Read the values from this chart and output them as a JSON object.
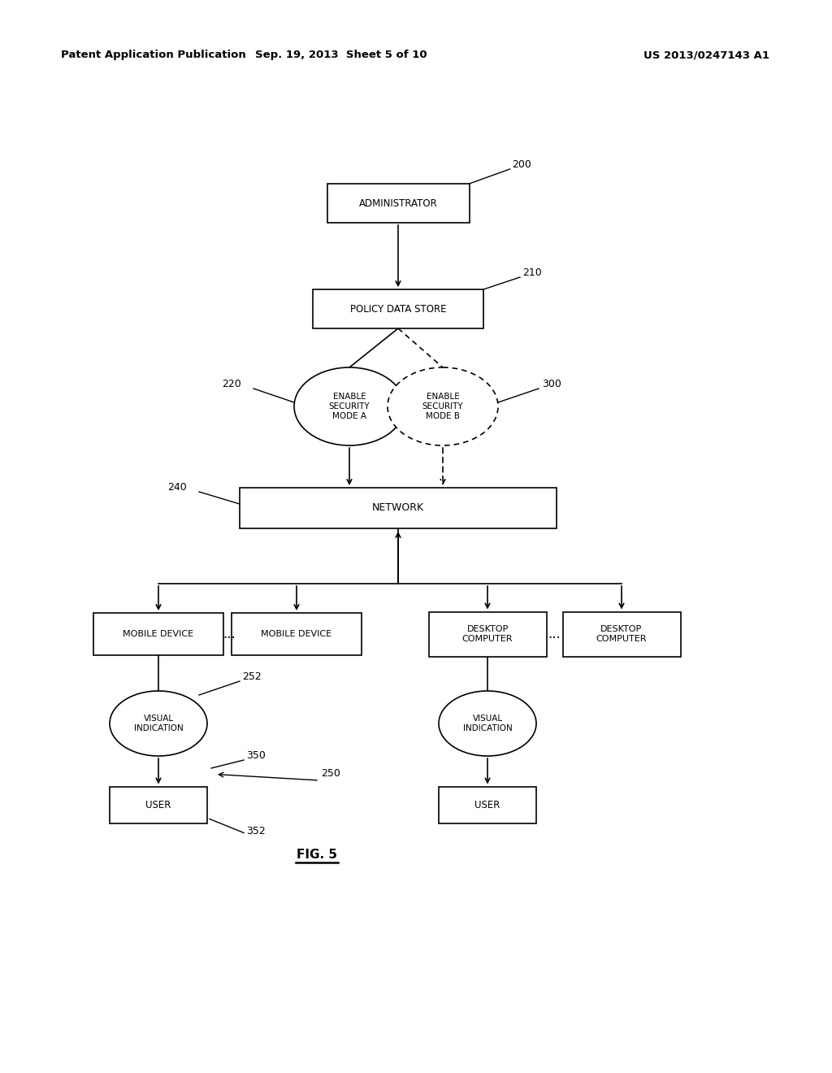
{
  "header_left": "Patent Application Publication",
  "header_mid": "Sep. 19, 2013  Sheet 5 of 10",
  "header_right": "US 2013/0247143 A1",
  "fig_label": "FIG. 5",
  "bg_color": "#ffffff"
}
